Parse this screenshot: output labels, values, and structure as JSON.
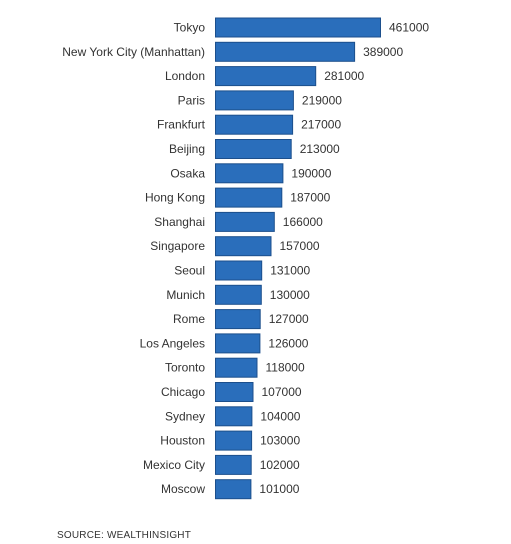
{
  "chart_data": {
    "type": "bar",
    "orientation": "horizontal",
    "categories": [
      "Tokyo",
      "New York City (Manhattan)",
      "London",
      "Paris",
      "Frankfurt",
      "Beijing",
      "Osaka",
      "Hong Kong",
      "Shanghai",
      "Singapore",
      "Seoul",
      "Munich",
      "Rome",
      "Los Angeles",
      "Toronto",
      "Chicago",
      "Sydney",
      "Houston",
      "Mexico City",
      "Moscow"
    ],
    "values": [
      461000,
      389000,
      281000,
      219000,
      217000,
      213000,
      190000,
      187000,
      166000,
      157000,
      131000,
      130000,
      127000,
      126000,
      118000,
      107000,
      104000,
      103000,
      102000,
      101000
    ],
    "value_labels": [
      "461000",
      "389000",
      "281000",
      "219000",
      "217000",
      "213000",
      "190000",
      "187000",
      "166000",
      "157000",
      "131000",
      "130000",
      "127000",
      "126000",
      "118000",
      "107000",
      "104000",
      "103000",
      "102000",
      "101000"
    ],
    "xlim": [
      0,
      461000
    ],
    "grid": false,
    "legend": "none",
    "bar_color": "#2a6ebb",
    "bar_edge_color": "#1c4f8c"
  },
  "source_text": "SOURCE: WEALTHINSIGHT"
}
